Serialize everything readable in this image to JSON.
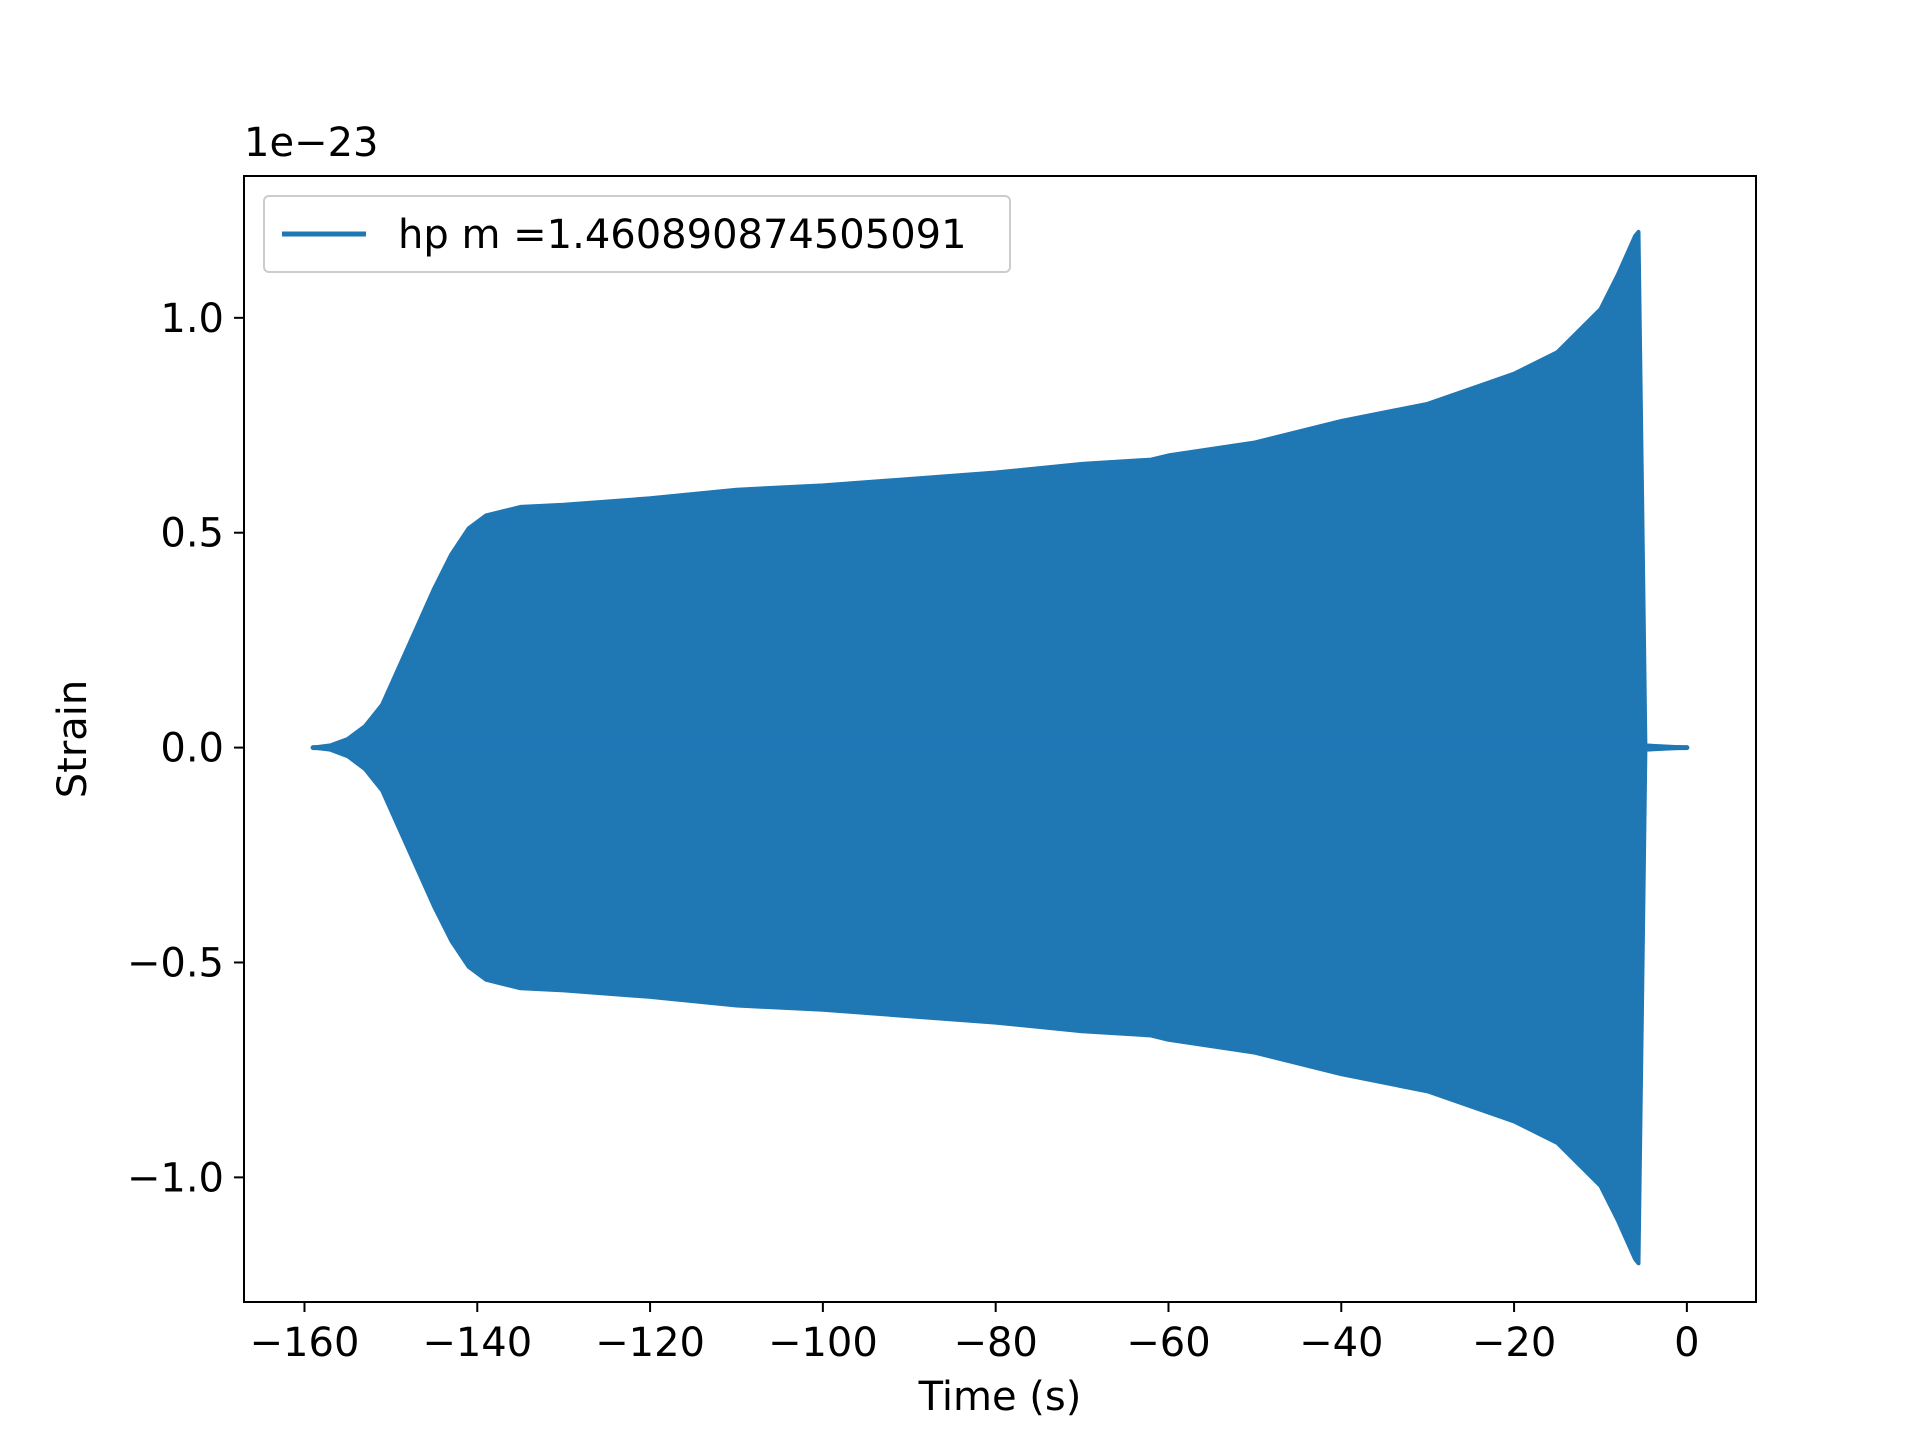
{
  "chart_data": {
    "type": "line",
    "title": "",
    "xlabel": "Time (s)",
    "ylabel": "Strain",
    "y_scale_label": "1e−23",
    "xlim": [
      -167,
      8
    ],
    "ylim": [
      -1.29,
      1.33
    ],
    "x_ticks": [
      -160,
      -140,
      -120,
      -100,
      -80,
      -60,
      -40,
      -20,
      0
    ],
    "x_tick_labels": [
      "−160",
      "−140",
      "−120",
      "−100",
      "−80",
      "−60",
      "−40",
      "−20",
      "0"
    ],
    "y_ticks": [
      -1.0,
      -0.5,
      0.0,
      0.5,
      1.0
    ],
    "y_tick_labels": [
      "−1.0",
      "−0.5",
      "0.0",
      "0.5",
      "1.0"
    ],
    "grid": false,
    "legend_position": "top-left",
    "series": [
      {
        "name": "hp m =1.460890874505091",
        "color": "#1f77b4",
        "envelope": {
          "x": [
            -159,
            -157,
            -155,
            -153,
            -151,
            -149,
            -147,
            -145,
            -143,
            -141,
            -139,
            -137,
            -135,
            -130,
            -120,
            -110,
            -100,
            -90,
            -80,
            -70,
            -62,
            -60,
            -50,
            -40,
            -30,
            -20,
            -15,
            -10,
            -8,
            -6,
            -5.6,
            -5.2,
            -4.8,
            0
          ],
          "upper": [
            0.0,
            0.005,
            0.02,
            0.05,
            0.1,
            0.19,
            0.28,
            0.37,
            0.45,
            0.51,
            0.54,
            0.55,
            0.56,
            0.565,
            0.58,
            0.6,
            0.61,
            0.625,
            0.64,
            0.66,
            0.67,
            0.68,
            0.71,
            0.76,
            0.8,
            0.87,
            0.92,
            1.02,
            1.1,
            1.19,
            1.2,
            0.6,
            0.005,
            0.0
          ],
          "lower": [
            0.0,
            -0.005,
            -0.02,
            -0.05,
            -0.1,
            -0.19,
            -0.28,
            -0.37,
            -0.45,
            -0.51,
            -0.54,
            -0.55,
            -0.56,
            -0.565,
            -0.58,
            -0.6,
            -0.61,
            -0.625,
            -0.64,
            -0.66,
            -0.67,
            -0.68,
            -0.71,
            -0.76,
            -0.8,
            -0.87,
            -0.92,
            -1.02,
            -1.1,
            -1.19,
            -1.2,
            -0.6,
            -0.005,
            0.0
          ]
        }
      }
    ]
  }
}
